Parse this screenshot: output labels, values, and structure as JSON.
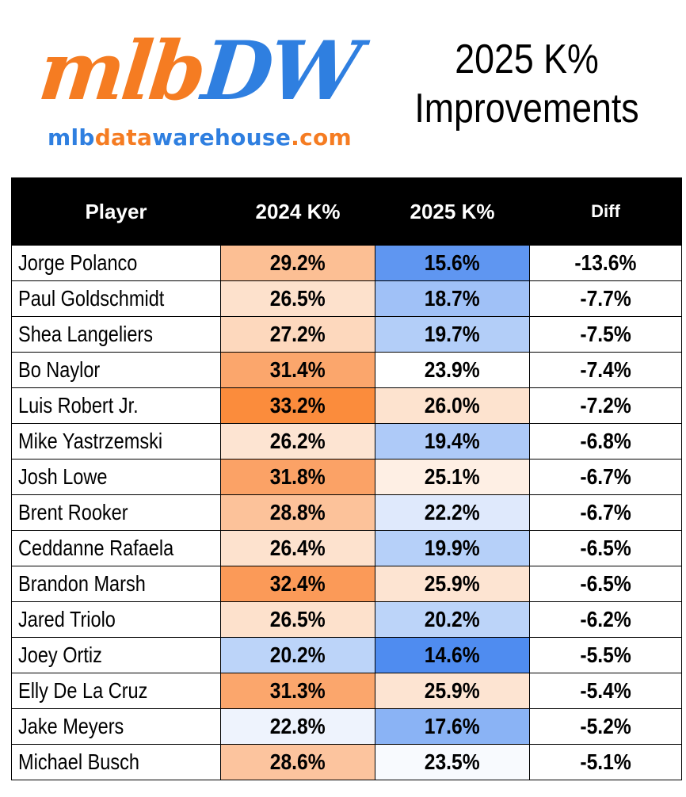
{
  "logo": {
    "mark_part1": "mlb",
    "mark_part2": "DW",
    "url_part1": "mlb",
    "url_part2": "data",
    "url_part3": "warehouse",
    "url_part4": ".com"
  },
  "title_line1": "2025 K%",
  "title_line2": "Improvements",
  "colors": {
    "header_bg": "#000000",
    "orange_max": "#fb8c3c",
    "blue_max": "#4f8cf0",
    "logo_orange": "#f57c22",
    "logo_blue": "#2f7fe0"
  },
  "chart_data": {
    "type": "table",
    "columns": [
      "Player",
      "2024 K%",
      "2025 K%",
      "Diff"
    ],
    "rows": [
      {
        "player": "Jorge Polanco",
        "k2024": "29.2%",
        "k2025": "15.6%",
        "diff": "-13.6%",
        "c2024": "#fcbf94",
        "c2025": "#5f96f1"
      },
      {
        "player": "Paul Goldschmidt",
        "k2024": "26.5%",
        "k2025": "18.7%",
        "diff": "-7.7%",
        "c2024": "#fde1cc",
        "c2025": "#a0c1f7"
      },
      {
        "player": "Shea Langeliers",
        "k2024": "27.2%",
        "k2025": "19.7%",
        "diff": "-7.5%",
        "c2024": "#fdd8bd",
        "c2025": "#b3cef8"
      },
      {
        "player": "Bo Naylor",
        "k2024": "31.4%",
        "k2025": "23.9%",
        "diff": "-7.4%",
        "c2024": "#fba66c",
        "c2025": "#ffffff"
      },
      {
        "player": "Luis Robert Jr.",
        "k2024": "33.2%",
        "k2025": "26.0%",
        "diff": "-7.2%",
        "c2024": "#fb8c3c",
        "c2025": "#fde3cf"
      },
      {
        "player": "Mike Yastrzemski",
        "k2024": "26.2%",
        "k2025": "19.4%",
        "diff": "-6.8%",
        "c2024": "#fde4d2",
        "c2025": "#aecaf8"
      },
      {
        "player": "Josh Lowe",
        "k2024": "31.8%",
        "k2025": "25.1%",
        "diff": "-6.7%",
        "c2024": "#fba266",
        "c2025": "#feefe4"
      },
      {
        "player": "Brent Rooker",
        "k2024": "28.8%",
        "k2025": "22.2%",
        "diff": "-6.7%",
        "c2024": "#fcc29a",
        "c2025": "#dfe9fc"
      },
      {
        "player": "Ceddanne Rafaela",
        "k2024": "26.4%",
        "k2025": "19.9%",
        "diff": "-6.5%",
        "c2024": "#fde2ce",
        "c2025": "#b6d0f9"
      },
      {
        "player": "Brandon Marsh",
        "k2024": "32.4%",
        "k2025": "25.9%",
        "diff": "-6.5%",
        "c2024": "#fb9a58",
        "c2025": "#fde4d2"
      },
      {
        "player": "Jared Triolo",
        "k2024": "26.5%",
        "k2025": "20.2%",
        "diff": "-6.2%",
        "c2024": "#fde1cc",
        "c2025": "#bcd4f9"
      },
      {
        "player": "Joey Ortiz",
        "k2024": "20.2%",
        "k2025": "14.6%",
        "diff": "-5.5%",
        "c2024": "#bcd4f9",
        "c2025": "#4f8cf0"
      },
      {
        "player": "Elly De La Cruz",
        "k2024": "31.3%",
        "k2025": "25.9%",
        "diff": "-5.4%",
        "c2024": "#fba66c",
        "c2025": "#fde4d2"
      },
      {
        "player": "Jake Meyers",
        "k2024": "22.8%",
        "k2025": "17.6%",
        "diff": "-5.2%",
        "c2024": "#eef3fd",
        "c2025": "#8ab3f5"
      },
      {
        "player": "Michael Busch",
        "k2024": "28.6%",
        "k2025": "23.5%",
        "diff": "-5.1%",
        "c2024": "#fcc49e",
        "c2025": "#f8fafe"
      }
    ]
  }
}
